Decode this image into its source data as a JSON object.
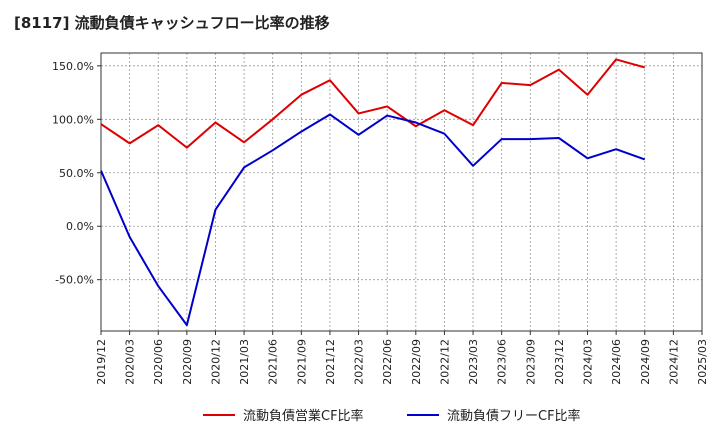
{
  "chart_data": {
    "type": "line",
    "title": "[8117]  流動負債キャッシュフロー比率の推移",
    "xlabel": "",
    "ylabel": "",
    "ylim": [
      -98,
      162
    ],
    "y_ticks": [
      "150.0%",
      "100.0%",
      "50.0%",
      "0.0%",
      "-50.0%"
    ],
    "y_tick_values": [
      150,
      100,
      50,
      0,
      -50
    ],
    "categories": [
      "2019/12",
      "2020/03",
      "2020/06",
      "2020/09",
      "2020/12",
      "2021/03",
      "2021/06",
      "2021/09",
      "2021/12",
      "2022/03",
      "2022/06",
      "2022/09",
      "2022/12",
      "2023/03",
      "2023/06",
      "2023/09",
      "2023/12",
      "2024/03",
      "2024/06",
      "2024/09",
      "2024/12",
      "2025/03"
    ],
    "grid": true,
    "legend_position": "bottom",
    "series": [
      {
        "name": "流動負債営業CF比率",
        "color": "#dd0000",
        "values": [
          95.5,
          77.5,
          94.5,
          73.5,
          97.0,
          78.5,
          100.0,
          123.0,
          136.5,
          105.5,
          112.0,
          93.5,
          108.5,
          94.5,
          134.0,
          132.0,
          146.5,
          123.0,
          156.0,
          148.5,
          null,
          null
        ]
      },
      {
        "name": "流動負債フリーCF比率",
        "color": "#0000cc",
        "values": [
          52.0,
          -10.0,
          -56.0,
          -92.5,
          15.5,
          55.0,
          71.0,
          88.5,
          104.5,
          85.5,
          103.5,
          97.0,
          86.5,
          56.5,
          81.5,
          81.5,
          82.5,
          63.5,
          72.0,
          62.5,
          null,
          null
        ]
      }
    ]
  }
}
